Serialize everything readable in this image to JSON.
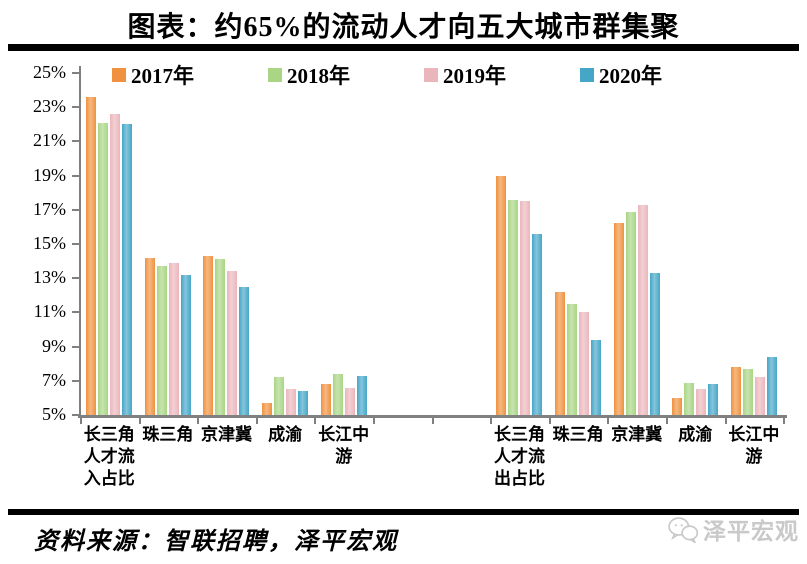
{
  "title": "图表：约65%的流动人才向五大城市群集聚",
  "legend": {
    "items": [
      {
        "label": "2017年",
        "color": "#F0913F"
      },
      {
        "label": "2018年",
        "color": "#A9D584"
      },
      {
        "label": "2019年",
        "color": "#EBB6BB"
      },
      {
        "label": "2020年",
        "color": "#45A6C8"
      }
    ]
  },
  "chart_data": {
    "type": "bar",
    "title": "图表：约65%的流动人才向五大城市群集聚",
    "xlabel": "",
    "ylabel": "",
    "ylim": [
      5,
      25
    ],
    "ytick_step": 2,
    "ytick_labels": [
      "25%",
      "23%",
      "21%",
      "19%",
      "17%",
      "15%",
      "13%",
      "11%",
      "9%",
      "7%",
      "5%"
    ],
    "grid": false,
    "legend_position": "top",
    "categories": [
      "长三角（人才流入占比）",
      "珠三角",
      "京津冀",
      "成渝",
      "长江中游",
      "长三角（人才流出占比）",
      "珠三角",
      "京津冀",
      "成渝",
      "长江中游"
    ],
    "category_label_lines": [
      [
        "长三角",
        "人才流",
        "入占比"
      ],
      [
        "珠三角"
      ],
      [
        "京津冀"
      ],
      [
        "成渝"
      ],
      [
        "长江中",
        "游"
      ],
      [
        "长三角",
        "人才流",
        "出占比"
      ],
      [
        "珠三角"
      ],
      [
        "京津冀"
      ],
      [
        "成渝"
      ],
      [
        "长江中",
        "游"
      ]
    ],
    "layout": {
      "cluster_sizes": [
        5,
        5
      ],
      "gap_slots": 2
    },
    "series": [
      {
        "name": "2017年",
        "color": "#F0913F",
        "values": [
          23.6,
          14.2,
          14.3,
          5.7,
          6.8,
          19.0,
          12.2,
          16.2,
          6.0,
          7.8
        ]
      },
      {
        "name": "2018年",
        "color": "#A9D584",
        "values": [
          22.1,
          13.7,
          14.1,
          7.2,
          7.4,
          17.6,
          11.5,
          16.9,
          6.9,
          7.7
        ]
      },
      {
        "name": "2019年",
        "color": "#EBB6BB",
        "values": [
          22.6,
          13.9,
          13.4,
          6.5,
          6.6,
          17.5,
          11.0,
          17.3,
          6.5,
          7.2
        ]
      },
      {
        "name": "2020年",
        "color": "#45A6C8",
        "values": [
          22.0,
          13.2,
          12.5,
          6.4,
          7.3,
          15.6,
          9.4,
          13.3,
          6.8,
          8.4
        ]
      }
    ]
  },
  "footer": {
    "source": "资料来源：智联招聘，泽平宏观",
    "watermark": "泽平宏观"
  }
}
